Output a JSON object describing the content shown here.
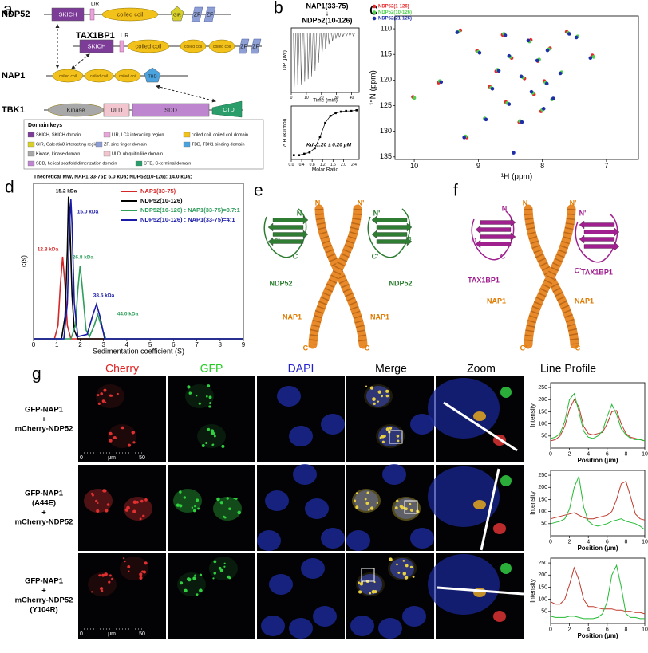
{
  "panel_labels": [
    "a",
    "b",
    "c",
    "d",
    "e",
    "f",
    "g"
  ],
  "a": {
    "proteins": [
      {
        "name": "NDP52",
        "domains": [
          "SKICH",
          "LIR",
          "coiled coil",
          "GIR",
          "ZF",
          "ZF"
        ]
      },
      {
        "name": "TAX1BP1",
        "domains": [
          "SKICH",
          "LIR",
          "coiled coil",
          "coiled coil",
          "coiled coil",
          "ZF",
          "ZF"
        ]
      },
      {
        "name": "NAP1",
        "domains": [
          "coiled coil",
          "coiled coil",
          "coiled coil",
          "TBD"
        ]
      },
      {
        "name": "TBK1",
        "domains": [
          "Kinase",
          "ULD",
          "SDD",
          "CTD"
        ]
      }
    ],
    "domain_keys": {
      "title": "Domain keys",
      "entries": [
        "SKICH, SKICH domain",
        "LIR, LC3 interacting region",
        "coiled coil, coiled coil domain",
        "GIR, Galectin8 interacting region",
        "ZF, zinc finger domain",
        "TBD, TBK1 binding domain",
        "Kinase, kinase domain",
        "ULD, ubiquitin like domain",
        "SDD, helical scaffold dimerization domain",
        "CTD, C-terminal domain"
      ]
    }
  },
  "b": {
    "title": [
      "NAP1(33-75)",
      "↓",
      "NDP52(10-126)"
    ]
  },
  "e": {
    "labels": [
      "N",
      "N'",
      "N",
      "N'",
      "NDP52",
      "NDP52",
      "C",
      "C'",
      "NAP1",
      "NAP1",
      "C'",
      "C",
      "β1",
      "β3"
    ]
  },
  "f": {
    "labels": [
      "N",
      "N'",
      "N",
      "N'",
      "TAX1BP1",
      "TAX1BP1",
      "C",
      "C'",
      "NAP1",
      "NAP1",
      "C'",
      "C",
      "β1"
    ]
  },
  "g": {
    "columns": [
      "Cherry",
      "GFP",
      "DAPI",
      "Merge",
      "Zoom",
      "Line Profile"
    ],
    "rows": [
      [
        "GFP-NAP1",
        "+",
        "mCherry-NDP52"
      ],
      [
        "GFP-NAP1",
        "(A44E)",
        "+",
        "mCherry-NDP52"
      ],
      [
        "GFP-NAP1",
        "+",
        "mCherry-NDP52",
        "(Y104R)"
      ]
    ],
    "scale_bar": [
      "0",
      "μm",
      "50"
    ]
  },
  "chart_data": [
    {
      "type": "spike",
      "xlabel": "Time (min)",
      "ylabel": "DP (μW)",
      "color": "#555555",
      "x": [
        2,
        4.3,
        6.6,
        8.9,
        11.2,
        13.5,
        15.8,
        18.1,
        20.4,
        22.7,
        25,
        27.3,
        29.6,
        31.9,
        34.2,
        36.5,
        38.8,
        41.1
      ],
      "values": [
        -1.0,
        -0.95,
        -0.95,
        -0.9,
        -0.85,
        -0.8,
        -0.7,
        -0.55,
        -0.4,
        -0.3,
        -0.2,
        -0.15,
        -0.1,
        -0.08,
        -0.06,
        -0.05,
        -0.05,
        -0.05
      ],
      "xlim": [
        0,
        45
      ],
      "ylim": [
        -1.1,
        0.1
      ],
      "xticks": [
        0,
        10,
        20,
        30,
        40
      ]
    },
    {
      "type": "scatter",
      "xlabel": "Molar Ratio",
      "ylabel": "Δ H (kJ/mol)",
      "annotation": "Kd=1.20 ± 0.20 μM",
      "color": "#000000",
      "x": [
        0.1,
        0.3,
        0.5,
        0.7,
        0.9,
        1.1,
        1.3,
        1.5,
        1.7,
        1.9,
        2.1,
        2.3,
        2.5
      ],
      "values": [
        -33,
        -33,
        -32,
        -31,
        -28,
        -20,
        -10,
        -5,
        -3,
        -2,
        -1.5,
        -1.5,
        -1
      ],
      "xlim": [
        0,
        2.6
      ],
      "ylim": [
        -36,
        2
      ],
      "xticks": [
        {
          "value": 0,
          "label": "0.0"
        },
        0.4,
        0.8,
        1.2,
        1.6,
        {
          "value": 2,
          "label": "2.0"
        },
        2.4
      ]
    },
    {
      "type": "scatter",
      "xlabel": "¹H (ppm)",
      "ylabel": "¹⁵N (ppm)",
      "legend": "top-left",
      "series": [
        {
          "name": "NDP52(1-126)",
          "color": "#e8272a",
          "x": [
            9.28,
            8.62,
            8.18,
            7.62,
            9.02,
            8.48,
            8.07,
            7.88,
            8.72,
            8.28,
            7.97,
            8.82,
            8.13,
            8.57,
            8.02,
            9.62,
            8.36,
            10.02,
            7.22,
            9.18
          ],
          "values": [
            110.3,
            111.2,
            112.2,
            110.6,
            114.3,
            115.7,
            116.3,
            113.8,
            118.3,
            119.7,
            120.2,
            121.3,
            122.8,
            124.3,
            126.1,
            120.5,
            128.2,
            123.3,
            115.2,
            131.2
          ]
        },
        {
          "name": "NDP52(10-126)",
          "color": "#4fcf4f",
          "x": [
            9.3,
            8.6,
            8.2,
            7.6,
            7.45,
            9.0,
            8.5,
            8.05,
            7.9,
            8.7,
            8.3,
            7.95,
            8.8,
            8.15,
            7.7,
            8.55,
            8.0,
            9.6,
            8.9,
            8.35,
            7.85,
            10.0,
            7.2,
            9.2
          ],
          "values": [
            110.5,
            111,
            112.5,
            110.8,
            111.5,
            114.5,
            115.5,
            116,
            114,
            118,
            119.5,
            120.5,
            121.5,
            122.5,
            118.5,
            124.5,
            125.8,
            120.2,
            127.5,
            128,
            123.8,
            123.5,
            115.5,
            131
          ]
        },
        {
          "name": "NDP52(21-126)",
          "color": "#1f2fa8",
          "x": [
            9.33,
            8.58,
            8.22,
            7.58,
            7.47,
            8.98,
            8.52,
            8.08,
            7.92,
            8.68,
            8.33,
            7.93,
            8.78,
            8.17,
            7.72,
            8.52,
            7.98,
            9.58,
            8.88,
            8.32,
            7.83,
            7.25,
            9.22,
            8.45
          ],
          "values": [
            110.7,
            111.3,
            112.3,
            111.0,
            111.7,
            114.7,
            115.3,
            116.2,
            114.2,
            118.2,
            119.3,
            120.7,
            121.7,
            122.3,
            118.7,
            124.7,
            125.6,
            120.4,
            127.7,
            128.2,
            123.6,
            115.7,
            131.2,
            134.2
          ]
        }
      ],
      "xlim": [
        10.3,
        6.5
      ],
      "ylim": [
        135.5,
        107.5
      ],
      "xticks": [
        10,
        9,
        8,
        7
      ],
      "yticks": [
        110,
        115,
        120,
        125,
        130,
        135
      ]
    },
    {
      "type": "line",
      "title": "Theoretical MW, NAP1(33-75): 5.0 kDa; NDP52(10-126): 14.0 kDa;",
      "xlabel": "Sedimentation coefficient (S)",
      "ylabel": "c(s)",
      "legend": "top-right",
      "series": [
        {
          "name": "NAP1(33-75)",
          "color": "#d62728",
          "x": [
            0,
            0.9,
            1.05,
            1.15,
            1.25,
            1.35,
            1.45,
            1.6,
            9
          ],
          "values": [
            0,
            0,
            0.3,
            1.2,
            1.85,
            1.2,
            0.3,
            0,
            0
          ]
        },
        {
          "name": "NDP52(10-126)",
          "color": "#000000",
          "x": [
            0,
            1.2,
            1.35,
            1.45,
            1.5,
            1.55,
            1.65,
            1.75,
            1.9,
            9
          ],
          "values": [
            0,
            0,
            0.5,
            2.0,
            3.2,
            2.8,
            1.0,
            0.2,
            0,
            0
          ]
        },
        {
          "name": "NDP52(10-126) : NAP1(33-75)=0.7:1",
          "color": "#2e9e5b",
          "x": [
            0,
            1.6,
            1.8,
            1.9,
            2.0,
            2.1,
            2.25,
            2.4,
            2.6,
            2.75,
            2.9,
            3.1,
            9
          ],
          "values": [
            0,
            0,
            0.3,
            1.1,
            1.65,
            1.1,
            0.2,
            0.05,
            0.3,
            0.55,
            0.3,
            0,
            0
          ]
        },
        {
          "name": "NDP52(10-126) : NAP1(33-75)=4:1",
          "color": "#1a1aa8",
          "x": [
            0,
            1.3,
            1.45,
            1.55,
            1.6,
            1.65,
            1.75,
            1.9,
            2.3,
            2.55,
            2.7,
            2.85,
            3.05,
            9
          ],
          "values": [
            0,
            0,
            0.8,
            2.6,
            3.15,
            2.6,
            0.8,
            0.05,
            0.1,
            0.55,
            0.78,
            0.5,
            0,
            0
          ]
        }
      ],
      "annotations": [
        {
          "text": "12.8 kDa",
          "color": "#d62728"
        },
        {
          "text": "15.2 kDa",
          "color": "#000000"
        },
        {
          "text": "15.0 kDa",
          "color": "#1a1aa8"
        },
        {
          "text": "26.8 kDa",
          "color": "#2e9e5b"
        },
        {
          "text": "38.5 kDa",
          "color": "#1a1aa8"
        },
        {
          "text": "44.0 kDa",
          "color": "#2e9e5b"
        }
      ],
      "xlim": [
        0,
        9
      ],
      "ylim": [
        0,
        3.5
      ],
      "xticks": [
        0,
        1,
        2,
        3,
        4,
        5,
        6,
        7,
        8,
        9
      ]
    },
    {
      "type": "line",
      "xlabel": "Position (μm)",
      "ylabel": "Intensity",
      "x": [
        0,
        0.5,
        1,
        1.5,
        2,
        2.5,
        3,
        3.5,
        4,
        4.5,
        5,
        5.5,
        6,
        6.5,
        7,
        7.5,
        8,
        8.5,
        9,
        9.5,
        10
      ],
      "series": [
        {
          "color": "#c0392b",
          "values": [
            30,
            35,
            50,
            90,
            160,
            200,
            170,
            90,
            60,
            55,
            60,
            65,
            100,
            150,
            155,
            100,
            60,
            45,
            40,
            35,
            30
          ]
        },
        {
          "color": "#22bb33",
          "values": [
            40,
            45,
            60,
            110,
            200,
            225,
            150,
            70,
            45,
            40,
            50,
            70,
            130,
            180,
            140,
            80,
            55,
            40,
            35,
            35,
            30
          ]
        }
      ],
      "xlim": [
        0,
        10
      ],
      "ylim": [
        0,
        270
      ],
      "xticks": [
        0,
        2,
        4,
        6,
        8,
        10
      ],
      "yticks": [
        50,
        100,
        150,
        200,
        250
      ]
    },
    {
      "type": "line",
      "xlabel": "Position (μm)",
      "ylabel": "Intensity",
      "x": [
        0,
        0.5,
        1,
        1.5,
        2,
        2.5,
        3,
        3.5,
        4,
        4.5,
        5,
        5.5,
        6,
        6.5,
        7,
        7.5,
        8,
        8.5,
        9,
        9.5,
        10
      ],
      "series": [
        {
          "color": "#c0392b",
          "values": [
            70,
            75,
            80,
            85,
            90,
            95,
            85,
            75,
            70,
            70,
            75,
            80,
            85,
            100,
            150,
            215,
            225,
            160,
            90,
            70,
            65
          ]
        },
        {
          "color": "#22bb33",
          "values": [
            50,
            55,
            60,
            70,
            110,
            200,
            245,
            120,
            60,
            45,
            40,
            45,
            50,
            60,
            65,
            70,
            60,
            55,
            50,
            40,
            25
          ]
        }
      ],
      "xlim": [
        0,
        10
      ],
      "ylim": [
        0,
        270
      ],
      "xticks": [
        0,
        2,
        4,
        6,
        8,
        10
      ],
      "yticks": [
        50,
        100,
        150,
        200,
        250
      ]
    },
    {
      "type": "line",
      "xlabel": "Position (μm)",
      "ylabel": "Intensity",
      "x": [
        0,
        0.5,
        1,
        1.5,
        2,
        2.5,
        3,
        3.5,
        4,
        4.5,
        5,
        5.5,
        6,
        6.5,
        7,
        7.5,
        8,
        8.5,
        9,
        9.5,
        10
      ],
      "series": [
        {
          "color": "#c0392b",
          "values": [
            90,
            80,
            80,
            100,
            160,
            230,
            180,
            100,
            70,
            70,
            65,
            60,
            60,
            60,
            55,
            55,
            50,
            50,
            45,
            45,
            40
          ]
        },
        {
          "color": "#22bb33",
          "values": [
            30,
            25,
            25,
            25,
            30,
            30,
            25,
            20,
            20,
            20,
            25,
            40,
            90,
            200,
            240,
            150,
            40,
            25,
            25,
            20,
            20
          ]
        }
      ],
      "xlim": [
        0,
        10
      ],
      "ylim": [
        0,
        270
      ],
      "xticks": [
        0,
        2,
        4,
        6,
        8,
        10
      ],
      "yticks": [
        50,
        100,
        150,
        200,
        250
      ]
    }
  ]
}
